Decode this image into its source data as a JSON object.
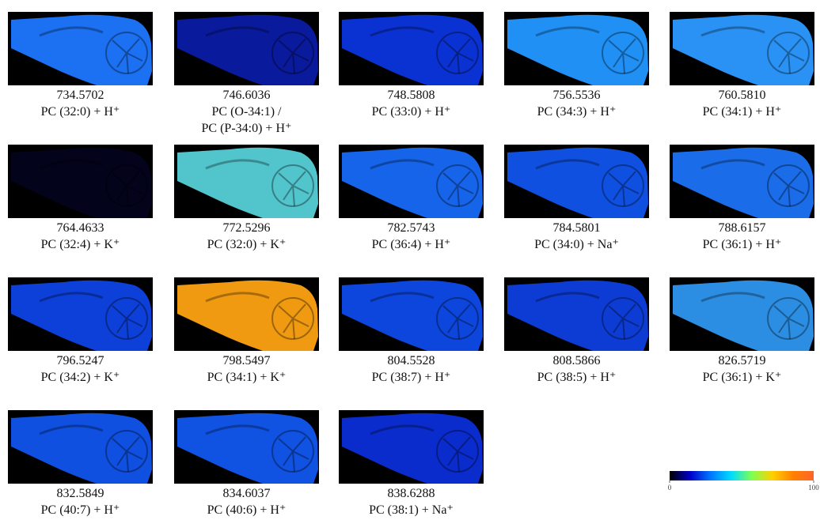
{
  "panels": [
    {
      "mass": "734.5702",
      "lines": [
        "PC (32:0) + H⁺"
      ],
      "color": "#1c70f2"
    },
    {
      "mass": "746.6036",
      "lines": [
        "PC (O-34:1) /",
        "PC (P-34:0) + H⁺"
      ],
      "color": "#0a1a9c"
    },
    {
      "mass": "748.5808",
      "lines": [
        "PC (33:0) + H⁺"
      ],
      "color": "#0a32d2"
    },
    {
      "mass": "756.5536",
      "lines": [
        "PC (34:3) + H⁺"
      ],
      "color": "#2090f4"
    },
    {
      "mass": "760.5810",
      "lines": [
        "PC (34:1) + H⁺"
      ],
      "color": "#2a92f4"
    },
    {
      "mass": "764.4633",
      "lines": [
        "PC (32:4) + K⁺"
      ],
      "color": "#03031c"
    },
    {
      "mass": "772.5296",
      "lines": [
        "PC (32:0) + K⁺"
      ],
      "color": "#52c4cc"
    },
    {
      "mass": "782.5743",
      "lines": [
        "PC (36:4) + H⁺"
      ],
      "color": "#1664ea"
    },
    {
      "mass": "784.5801",
      "lines": [
        "PC (34:0) + Na⁺"
      ],
      "color": "#0f50e0"
    },
    {
      "mass": "788.6157",
      "lines": [
        "PC (36:1) + H⁺"
      ],
      "color": "#1a6ce8"
    },
    {
      "mass": "796.5247",
      "lines": [
        "PC (34:2) + K⁺"
      ],
      "color": "#0c40d8"
    },
    {
      "mass": "798.5497",
      "lines": [
        "PC (34:1) + K⁺"
      ],
      "color": "#f09a12"
    },
    {
      "mass": "804.5528",
      "lines": [
        "PC (38:7) + H⁺"
      ],
      "color": "#0d46dc"
    },
    {
      "mass": "808.5866",
      "lines": [
        "PC (38:5) + H⁺"
      ],
      "color": "#0c3cd4"
    },
    {
      "mass": "826.5719",
      "lines": [
        "PC (36:1) + K⁺"
      ],
      "color": "#2c8ee2"
    },
    {
      "mass": "832.5849",
      "lines": [
        "PC (40:7) + H⁺"
      ],
      "color": "#0f50e0"
    },
    {
      "mass": "834.6037",
      "lines": [
        "PC (40:6) + H⁺"
      ],
      "color": "#1052e2"
    },
    {
      "mass": "838.6288",
      "lines": [
        "PC (38:1) + Na⁺"
      ],
      "color": "#0a2ccc"
    }
  ],
  "colorbar": {
    "colors": [
      "#000000",
      "#0000c8",
      "#0078ff",
      "#00dcff",
      "#80ff50",
      "#ffd000",
      "#ff8000",
      "#ff6428"
    ],
    "ticks": [
      0,
      100
    ]
  }
}
